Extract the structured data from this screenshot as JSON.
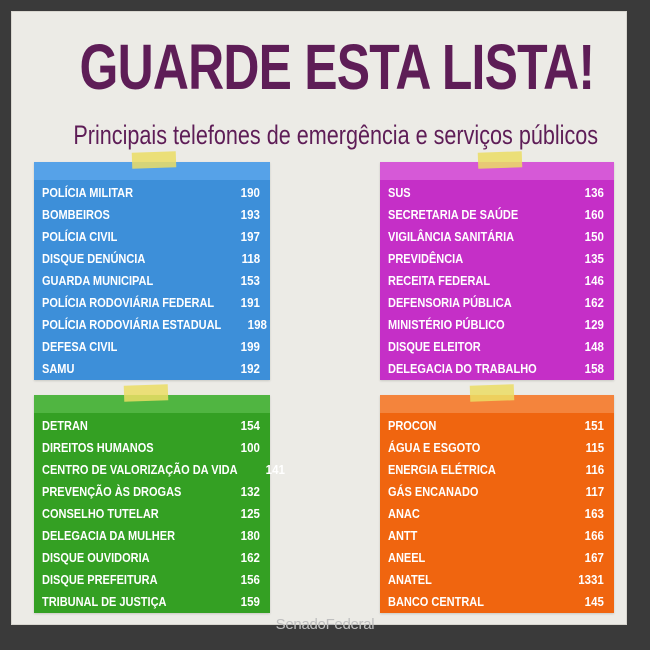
{
  "header": {
    "title": "GUARDE ESTA LISTA!",
    "subtitle": "Principais telefones de emergência e serviços públicos"
  },
  "colors": {
    "title": "#5e1d57",
    "blue": "#3d8fd9",
    "magenta": "#c52fc7",
    "green": "#34a023",
    "orange": "#f0650f"
  },
  "lists": {
    "blue": [
      {
        "name": "POLÍCIA MILITAR",
        "number": "190"
      },
      {
        "name": "BOMBEIROS",
        "number": "193"
      },
      {
        "name": "POLÍCIA CIVIL",
        "number": "197"
      },
      {
        "name": "DISQUE DENÚNCIA",
        "number": "118"
      },
      {
        "name": "GUARDA MUNICIPAL",
        "number": "153"
      },
      {
        "name": "POLÍCIA RODOVIÁRIA FEDERAL",
        "number": "191"
      },
      {
        "name": "POLÍCIA RODOVIÁRIA ESTADUAL",
        "number": "198"
      },
      {
        "name": "DEFESA CIVIL",
        "number": "199"
      },
      {
        "name": "SAMU",
        "number": "192"
      }
    ],
    "magenta": [
      {
        "name": "SUS",
        "number": "136"
      },
      {
        "name": "SECRETARIA DE SAÚDE",
        "number": "160"
      },
      {
        "name": "VIGILÂNCIA SANITÁRIA",
        "number": "150"
      },
      {
        "name": "PREVIDÊNCIA",
        "number": "135"
      },
      {
        "name": "RECEITA FEDERAL",
        "number": "146"
      },
      {
        "name": "DEFENSORIA PÚBLICA",
        "number": "162"
      },
      {
        "name": "MINISTÉRIO PÚBLICO",
        "number": "129"
      },
      {
        "name": "DISQUE ELEITOR",
        "number": "148"
      },
      {
        "name": "DELEGACIA DO TRABALHO",
        "number": "158"
      }
    ],
    "green": [
      {
        "name": "DETRAN",
        "number": "154"
      },
      {
        "name": "DIREITOS HUMANOS",
        "number": "100"
      },
      {
        "name": "CENTRO DE VALORIZAÇÃO DA VIDA",
        "number": "141"
      },
      {
        "name": "PREVENÇÃO ÀS DROGAS",
        "number": "132"
      },
      {
        "name": "CONSELHO TUTELAR",
        "number": "125"
      },
      {
        "name": "DELEGACIA DA MULHER",
        "number": "180"
      },
      {
        "name": "DISQUE OUVIDORIA",
        "number": "162"
      },
      {
        "name": "DISQUE PREFEITURA",
        "number": "156"
      },
      {
        "name": "TRIBUNAL DE JUSTIÇA",
        "number": "159"
      }
    ],
    "orange": [
      {
        "name": "PROCON",
        "number": "151"
      },
      {
        "name": "ÁGUA E ESGOTO",
        "number": "115"
      },
      {
        "name": "ENERGIA ELÉTRICA",
        "number": "116"
      },
      {
        "name": "GÁS ENCANADO",
        "number": "117"
      },
      {
        "name": "ANAC",
        "number": "163"
      },
      {
        "name": "ANTT",
        "number": "166"
      },
      {
        "name": "ANEEL",
        "number": "167"
      },
      {
        "name": "ANATEL",
        "number": "1331"
      },
      {
        "name": "BANCO CENTRAL",
        "number": "145"
      }
    ]
  },
  "footer": {
    "logo_text": "SenadoFederal"
  }
}
